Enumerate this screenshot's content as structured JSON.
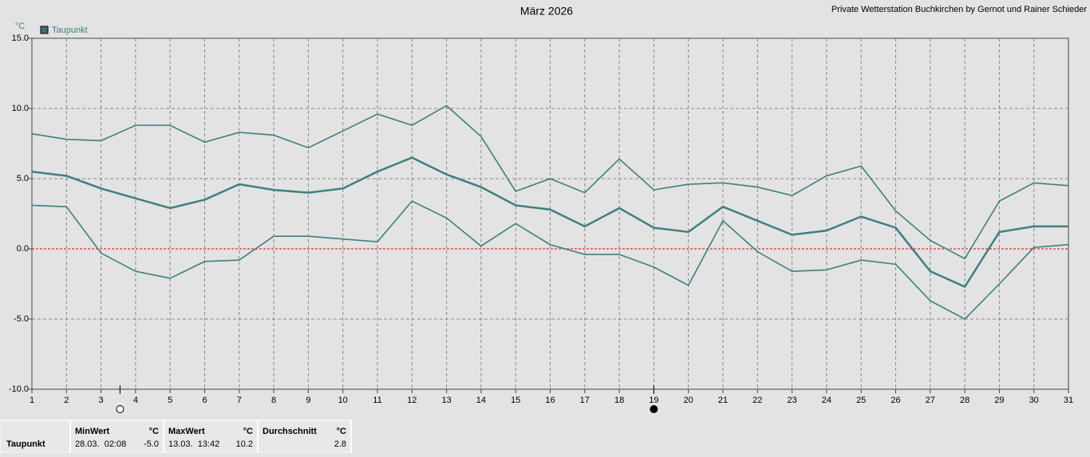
{
  "chart_data": {
    "type": "line",
    "title": "März 2026",
    "subtitle": "Private Wetterstation Buchkirchen by Gernot und Rainer Schieder",
    "y_unit": "°C",
    "legend": "Taupunkt",
    "legend_color": "#3f6f73",
    "x": [
      1,
      2,
      3,
      4,
      5,
      6,
      7,
      8,
      9,
      10,
      11,
      12,
      13,
      14,
      15,
      16,
      17,
      18,
      19,
      20,
      21,
      22,
      23,
      24,
      25,
      26,
      27,
      28,
      29,
      30,
      31
    ],
    "xlim": [
      1,
      31
    ],
    "xticks": [
      1,
      2,
      3,
      4,
      5,
      6,
      7,
      8,
      9,
      10,
      11,
      12,
      13,
      14,
      15,
      16,
      17,
      18,
      19,
      20,
      21,
      22,
      23,
      24,
      25,
      26,
      27,
      28,
      29,
      30,
      31
    ],
    "ylim": [
      -10,
      15
    ],
    "yticks": [
      {
        "value": -10,
        "label": "-10.0"
      },
      {
        "value": -5,
        "label": "-5.0"
      },
      {
        "value": 0,
        "label": "0.0"
      },
      {
        "value": 5,
        "label": "5.0"
      },
      {
        "value": 10,
        "label": "10.0"
      },
      {
        "value": 15,
        "label": "15.0"
      }
    ],
    "grid": true,
    "zero_line_color": "#e00000",
    "series": [
      {
        "color": "#3f7f80",
        "values": [
          8.2,
          7.8,
          7.7,
          8.8,
          8.8,
          7.6,
          8.3,
          8.1,
          7.2,
          8.4,
          9.6,
          8.8,
          10.2,
          8.0,
          4.1,
          5.0,
          4.0,
          6.4,
          4.2,
          4.6,
          4.7,
          4.4,
          3.8,
          5.2,
          5.9,
          2.7,
          0.6,
          -0.7,
          3.4,
          4.7,
          4.5
        ]
      },
      {
        "color": "#3f7f80",
        "values": [
          5.5,
          5.2,
          4.3,
          3.6,
          2.9,
          3.5,
          4.6,
          4.2,
          4.0,
          4.3,
          5.5,
          6.5,
          5.3,
          4.4,
          3.1,
          2.8,
          1.6,
          2.9,
          1.5,
          1.2,
          3.0,
          2.0,
          1.0,
          1.3,
          2.3,
          1.5,
          -1.6,
          -2.7,
          1.2,
          1.6,
          1.6
        ]
      },
      {
        "color": "#3f7f80",
        "values": [
          3.1,
          3.0,
          -0.3,
          -1.6,
          -2.1,
          -0.9,
          -0.8,
          0.9,
          0.9,
          0.7,
          0.5,
          3.4,
          2.2,
          0.2,
          1.8,
          0.3,
          -0.4,
          -0.4,
          -1.3,
          -2.6,
          2.0,
          -0.2,
          -1.6,
          -1.5,
          -0.8,
          -1.1,
          -3.7,
          -5.0,
          -2.5,
          0.1,
          0.3
        ]
      }
    ],
    "moon_phases": [
      {
        "x": 3.55,
        "fill": "#ffffff"
      },
      {
        "x": 19,
        "fill": "#000000"
      }
    ]
  },
  "summary": {
    "row_label": "Taupunkt",
    "cells": [
      {
        "title": "MinWert",
        "unit": "°C",
        "time": "28.03.  02:08",
        "value": "-5.0"
      },
      {
        "title": "MaxWert",
        "unit": "°C",
        "time": "13.03.  13:42",
        "value": "10.2"
      },
      {
        "title": "Durchschnitt",
        "unit": "°C",
        "time": "",
        "value": "2.8"
      }
    ]
  }
}
